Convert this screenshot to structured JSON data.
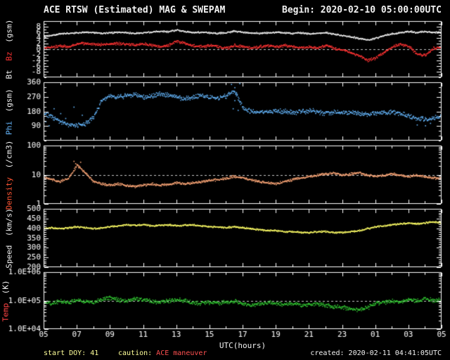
{
  "header": {
    "title": "ACE RTSW (Estimated) MAG & SWEPAM",
    "begin": "Begin: 2020-02-10 05:00:00UTC"
  },
  "x_axis": {
    "label": "UTC(hours)",
    "start_hour": 5,
    "end_hour": 29,
    "sample_step": 0.5,
    "tick_labels": [
      "05",
      "07",
      "09",
      "11",
      "13",
      "15",
      "17",
      "19",
      "21",
      "23",
      "01",
      "03",
      "05"
    ]
  },
  "footer": {
    "start_doy": "start DOY: 41",
    "caution_label": "caution:",
    "caution_text": "ACE maneuver",
    "created": "created: 2020-02-11 04:41:05UTC"
  },
  "colors": {
    "background": "#000000",
    "frame": "#ffffff",
    "dashed": "#c8c8c8",
    "footer_left": "#ffff99",
    "caution_label": "#ffff99",
    "caution_text": "#ff5050",
    "created": "#f2f2f2"
  },
  "chart_data": [
    {
      "type": "scatter",
      "name": "bt-bz",
      "scale": "linear",
      "ylim": [
        -10,
        10
      ],
      "yminor_step": 1,
      "dashed": [
        0
      ],
      "axis_title": [
        {
          "text": "Bt",
          "color": "#f2f2f2"
        },
        {
          "text": "Bz",
          "color": "#ff3333"
        },
        {
          "text": "(gsm)",
          "color": "#f2f2f2"
        }
      ],
      "yticks": [
        {
          "v": 8,
          "label": "8"
        },
        {
          "v": 6,
          "label": "6"
        },
        {
          "v": 4,
          "label": "4"
        },
        {
          "v": 2,
          "label": "2"
        },
        {
          "v": 0,
          "label": "0"
        },
        {
          "v": -2,
          "label": "-2"
        },
        {
          "v": -4,
          "label": "-4"
        },
        {
          "v": -6,
          "label": "-6"
        },
        {
          "v": -8,
          "label": "-8"
        }
      ],
      "series": [
        {
          "name": "Bt",
          "color": "#f2f2f2",
          "jitter": 0.35,
          "values": [
            4.5,
            5.2,
            5.6,
            5.8,
            6.0,
            6.2,
            6.0,
            5.8,
            6.0,
            6.2,
            6.0,
            5.8,
            6.0,
            6.3,
            6.5,
            6.4,
            6.9,
            6.5,
            6.1,
            6.2,
            6.0,
            5.8,
            6.0,
            6.6,
            6.2,
            6.0,
            5.8,
            6.0,
            6.2,
            6.0,
            5.8,
            6.0,
            5.6,
            5.8,
            6.0,
            5.5,
            5.0,
            4.6,
            4.0,
            3.4,
            4.0,
            5.0,
            5.6,
            6.0,
            6.5,
            6.1,
            6.4,
            6.2,
            6.0
          ]
        },
        {
          "name": "Bz",
          "color": "#ff3333",
          "jitter": 0.6,
          "values": [
            0.5,
            1.0,
            1.4,
            1.0,
            2.0,
            2.2,
            2.0,
            1.8,
            2.0,
            2.2,
            2.0,
            1.8,
            2.0,
            1.5,
            1.0,
            1.6,
            3.0,
            2.2,
            1.5,
            1.0,
            1.5,
            1.0,
            0.5,
            1.5,
            1.0,
            0.5,
            1.0,
            1.5,
            1.0,
            1.5,
            1.0,
            0.5,
            1.0,
            0.5,
            1.5,
            0.5,
            0.0,
            -1.0,
            -2.2,
            -3.8,
            -3.0,
            -1.0,
            1.0,
            2.0,
            1.2,
            -1.5,
            -2.0,
            0.5,
            1.0
          ]
        }
      ]
    },
    {
      "type": "scatter",
      "name": "phi",
      "scale": "linear",
      "ylim": [
        0,
        360
      ],
      "yminor_step": 30,
      "dashed": [],
      "axis_title": [
        {
          "text": "Phi",
          "color": "#66b8ff"
        },
        {
          "text": "(gsm)",
          "color": "#f2f2f2"
        }
      ],
      "yticks": [
        {
          "v": 360,
          "label": "360"
        },
        {
          "v": 270,
          "label": "270"
        },
        {
          "v": 180,
          "label": "180"
        },
        {
          "v": 90,
          "label": "90"
        }
      ],
      "series": [
        {
          "name": "Phi",
          "color": "#66b8ff",
          "jitter": 18,
          "values": [
            170,
            150,
            120,
            100,
            95,
            110,
            150,
            255,
            280,
            272,
            282,
            285,
            272,
            280,
            290,
            282,
            272,
            262,
            272,
            280,
            272,
            262,
            280,
            310,
            205,
            182,
            176,
            180,
            186,
            180,
            176,
            180,
            186,
            180,
            172,
            176,
            180,
            176,
            170,
            165,
            170,
            176,
            180,
            170,
            152,
            140,
            132,
            142,
            160
          ],
          "points": [
            [
              5.1,
              120
            ],
            [
              5.3,
              95
            ],
            [
              5.6,
              200
            ],
            [
              6.0,
              170
            ],
            [
              6.3,
              140
            ],
            [
              6.8,
              210
            ],
            [
              7.3,
              160
            ],
            [
              16.3,
              350
            ],
            [
              16.4,
              200
            ],
            [
              16.5,
              250
            ],
            [
              16.5,
              330
            ],
            [
              16.6,
              300
            ],
            [
              16.7,
              190
            ],
            [
              16.8,
              355
            ],
            [
              27.5,
              100
            ],
            [
              28.0,
              95
            ],
            [
              28.3,
              110
            ]
          ]
        }
      ]
    },
    {
      "type": "scatter",
      "name": "density",
      "scale": "log",
      "ylim": [
        1,
        100
      ],
      "dashed": [
        10
      ],
      "axis_title": [
        {
          "text": "Density",
          "color": "#ff5533"
        },
        {
          "text": "(/cm3)",
          "color": "#f2f2f2"
        }
      ],
      "yticks": [
        {
          "v": 100,
          "label": "100"
        },
        {
          "v": 10,
          "label": "10"
        },
        {
          "v": 1,
          "label": "1"
        }
      ],
      "series": [
        {
          "name": "Density",
          "color": "#ffa878",
          "jitter": 0.05,
          "values": [
            8,
            7,
            6,
            8,
            22,
            12,
            6,
            5,
            4.5,
            5,
            4.5,
            4,
            4.5,
            5,
            4.5,
            5,
            5.5,
            5,
            5.5,
            6,
            6.5,
            7,
            8,
            9,
            8,
            7,
            6,
            5.5,
            5,
            6,
            7,
            8,
            9,
            10,
            11,
            12,
            10,
            11,
            12,
            10,
            9,
            10,
            11,
            10,
            9,
            10,
            9,
            8,
            8
          ],
          "points": [
            [
              6.8,
              30
            ],
            [
              6.9,
              25
            ],
            [
              7.1,
              18
            ],
            [
              7.2,
              28
            ]
          ]
        }
      ]
    },
    {
      "type": "scatter",
      "name": "speed",
      "scale": "linear",
      "ylim": [
        200,
        500
      ],
      "yminor_step": 10,
      "dashed": [],
      "axis_title": [
        {
          "text": "Speed",
          "color": "#f2f2f2"
        },
        {
          "text": "(km/s)",
          "color": "#f2f2f2"
        }
      ],
      "yticks": [
        {
          "v": 500,
          "label": "500"
        },
        {
          "v": 450,
          "label": "450"
        },
        {
          "v": 400,
          "label": "400"
        },
        {
          "v": 350,
          "label": "350"
        },
        {
          "v": 300,
          "label": "300"
        },
        {
          "v": 250,
          "label": "250"
        },
        {
          "v": 200,
          "label": "200"
        }
      ],
      "series": [
        {
          "name": "Speed",
          "color": "#ffff66",
          "jitter": 5,
          "values": [
            400,
            405,
            400,
            405,
            410,
            405,
            400,
            405,
            410,
            415,
            420,
            418,
            420,
            415,
            418,
            420,
            415,
            418,
            420,
            415,
            410,
            408,
            405,
            410,
            405,
            400,
            395,
            390,
            390,
            385,
            385,
            380,
            380,
            385,
            385,
            380,
            380,
            385,
            390,
            400,
            410,
            415,
            420,
            425,
            430,
            425,
            430,
            435,
            430
          ]
        }
      ]
    },
    {
      "type": "scatter",
      "name": "temp",
      "scale": "log",
      "ylim": [
        10000,
        1000000
      ],
      "dashed": [
        100000
      ],
      "axis_title": [
        {
          "text": "Temp",
          "color": "#ff4444"
        },
        {
          "text": "(K)",
          "color": "#f2f2f2"
        }
      ],
      "yticks": [
        {
          "v": 1000000,
          "label": "1.0E+06"
        },
        {
          "v": 100000,
          "label": "1.0E+05"
        },
        {
          "v": 10000,
          "label": "1.0E+04"
        }
      ],
      "series": [
        {
          "name": "Temp",
          "color": "#33cc33",
          "jitter": 0.09,
          "values": [
            90000,
            80000,
            100000,
            90000,
            110000,
            100000,
            90000,
            120000,
            130000,
            110000,
            100000,
            120000,
            110000,
            100000,
            90000,
            100000,
            110000,
            100000,
            90000,
            80000,
            90000,
            85000,
            90000,
            100000,
            80000,
            70000,
            80000,
            90000,
            80000,
            75000,
            80000,
            70000,
            75000,
            80000,
            70000,
            65000,
            60000,
            55000,
            50000,
            60000,
            80000,
            90000,
            100000,
            90000,
            110000,
            100000,
            120000,
            100000,
            110000
          ]
        }
      ]
    }
  ]
}
